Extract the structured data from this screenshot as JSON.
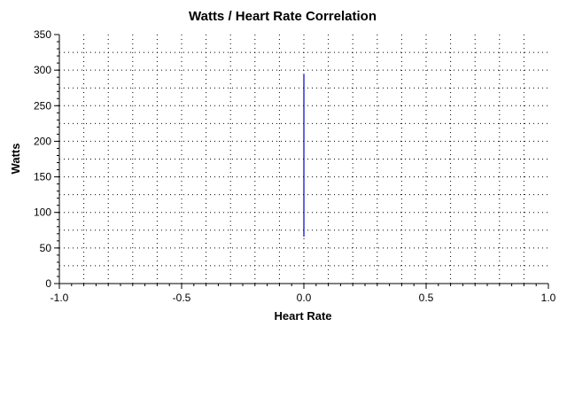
{
  "chart_data": {
    "type": "line",
    "title": "Watts / Heart Rate Correlation",
    "xlabel": "Heart Rate",
    "ylabel": "Watts",
    "xlim": [
      -1.0,
      1.0
    ],
    "ylim": [
      0,
      350
    ],
    "x_ticks": [
      "-1.0",
      "-0.5",
      "0.0",
      "0.5",
      "1.0"
    ],
    "y_ticks": [
      "0",
      "50",
      "100",
      "150",
      "200",
      "250",
      "300",
      "350"
    ],
    "grid": true,
    "legend": "none",
    "series": [
      {
        "color": "#0000cc",
        "points": [
          [
            0.0,
            66
          ],
          [
            0.0,
            295
          ]
        ]
      }
    ]
  }
}
